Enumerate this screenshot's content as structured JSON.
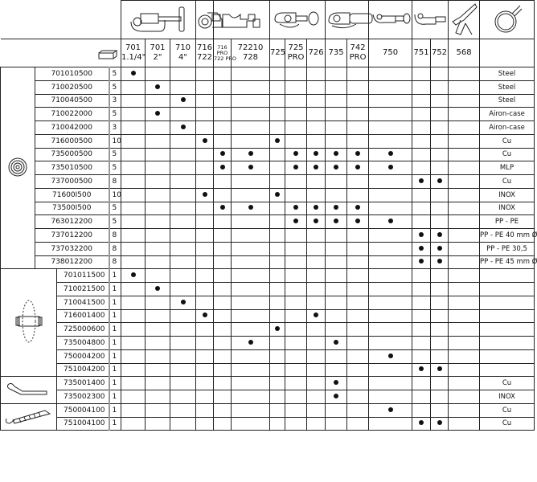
{
  "columns": [
    {
      "line1": "701",
      "line2": "1.1/4\""
    },
    {
      "line1": "701",
      "line2": "2\""
    },
    {
      "line1": "710",
      "line2": "4\""
    },
    {
      "line1": "716",
      "line2": "722"
    },
    {
      "line1": "716 PRO",
      "line2": "722 PRO",
      "small": true
    },
    {
      "line1": "72210",
      "line2": "728"
    },
    {
      "line1": "725",
      "line2": ""
    },
    {
      "line1": "725",
      "line2": "PRO"
    },
    {
      "line1": "726",
      "line2": ""
    },
    {
      "line1": "735",
      "line2": ""
    },
    {
      "line1": "742",
      "line2": "PRO"
    },
    {
      "line1": "750",
      "line2": ""
    },
    {
      "line1": "751",
      "line2": ""
    },
    {
      "line1": "752",
      "line2": ""
    },
    {
      "line1": "568",
      "line2": ""
    }
  ],
  "header_icons": [
    {
      "icon": "pipe-cutter-701-710-icon",
      "span": 3
    },
    {
      "icon": "mini-cutter-716-icon",
      "span": 1
    },
    {
      "icon": "cutter-716pro-72210-icon",
      "span": 2
    },
    {
      "icon": "cutter-725-726-icon",
      "span": 3
    },
    {
      "icon": "cutter-735-742-icon",
      "span": 2
    },
    {
      "icon": "cutter-750-icon",
      "span": 1
    },
    {
      "icon": "cutter-751-752-icon",
      "span": 2
    },
    {
      "icon": "shears-568-icon",
      "span": 1
    },
    {
      "icon": "coil-pipe-icon",
      "span": 1
    }
  ],
  "quantity_icon": "box-pack-icon",
  "sections": [
    {
      "icon": "cutting-wheel-icon",
      "rows": [
        {
          "code": "701010500",
          "qty": "5",
          "marks": [
            0
          ],
          "material": "Steel"
        },
        {
          "code": "710020500",
          "qty": "5",
          "marks": [
            1
          ],
          "material": "Steel"
        },
        {
          "code": "710040500",
          "qty": "3",
          "marks": [
            2
          ],
          "material": "Steel"
        },
        {
          "code": "710022000",
          "qty": "5",
          "marks": [
            1
          ],
          "material": "Airon-case"
        },
        {
          "code": "710042000",
          "qty": "3",
          "marks": [
            2
          ],
          "material": "Airon-case"
        },
        {
          "code": "716000500",
          "qty": "10",
          "marks": [
            3,
            6
          ],
          "material": "Cu"
        },
        {
          "code": "735000500",
          "qty": "5",
          "marks": [
            4,
            5,
            7,
            8,
            9,
            10,
            11
          ],
          "material": "Cu"
        },
        {
          "code": "735010500",
          "qty": "5",
          "marks": [
            4,
            5,
            7,
            8,
            9,
            10,
            11
          ],
          "material": "MLP"
        },
        {
          "code": "737000500",
          "qty": "8",
          "marks": [
            12,
            13
          ],
          "material": "Cu"
        },
        {
          "code": "71600I500",
          "qty": "10",
          "marks": [
            3,
            6
          ],
          "material": "INOX"
        },
        {
          "code": "73500I500",
          "qty": "5",
          "marks": [
            4,
            5,
            7,
            8,
            9,
            10
          ],
          "material": "INOX"
        },
        {
          "code": "763012200",
          "qty": "5",
          "marks": [
            7,
            8,
            9,
            10,
            11
          ],
          "material": "PP - PE"
        },
        {
          "code": "737012200",
          "qty": "8",
          "marks": [
            12,
            13
          ],
          "material": "PP - PE 40 mm Ø"
        },
        {
          "code": "737032200",
          "qty": "8",
          "marks": [
            12,
            13
          ],
          "material": "PP - PE 30,5"
        },
        {
          "code": "738012200",
          "qty": "8",
          "marks": [
            12,
            13
          ],
          "material": "PP - PE 45 mm Ø"
        }
      ]
    },
    {
      "icon": "roller-pin-icon",
      "rows": [
        {
          "code": "701011500",
          "qty": "1",
          "marks": [
            0
          ],
          "material": ""
        },
        {
          "code": "710021500",
          "qty": "1",
          "marks": [
            1
          ],
          "material": ""
        },
        {
          "code": "710041500",
          "qty": "1",
          "marks": [
            2
          ],
          "material": ""
        },
        {
          "code": "716001400",
          "qty": "1",
          "marks": [
            3,
            8
          ],
          "material": ""
        },
        {
          "code": "725000600",
          "qty": "1",
          "marks": [
            6
          ],
          "material": ""
        },
        {
          "code": "735004800",
          "qty": "1",
          "marks": [
            5,
            9
          ],
          "material": ""
        },
        {
          "code": "750004200",
          "qty": "1",
          "marks": [
            11
          ],
          "material": ""
        },
        {
          "code": "751004200",
          "qty": "1",
          "marks": [
            12,
            13
          ],
          "material": ""
        }
      ]
    },
    {
      "icon": "deburring-blade-icon",
      "rows": [
        {
          "code": "735001400",
          "qty": "1",
          "marks": [
            9
          ],
          "material": "Cu"
        },
        {
          "code": "735002300",
          "qty": "1",
          "marks": [
            9
          ],
          "material": "INOX"
        }
      ]
    },
    {
      "icon": "deburrer-tool-icon",
      "rows": [
        {
          "code": "750004100",
          "qty": "1",
          "marks": [
            11
          ],
          "material": "Cu"
        },
        {
          "code": "751004100",
          "qty": "1",
          "marks": [
            12,
            13
          ],
          "material": "Cu"
        }
      ]
    }
  ]
}
